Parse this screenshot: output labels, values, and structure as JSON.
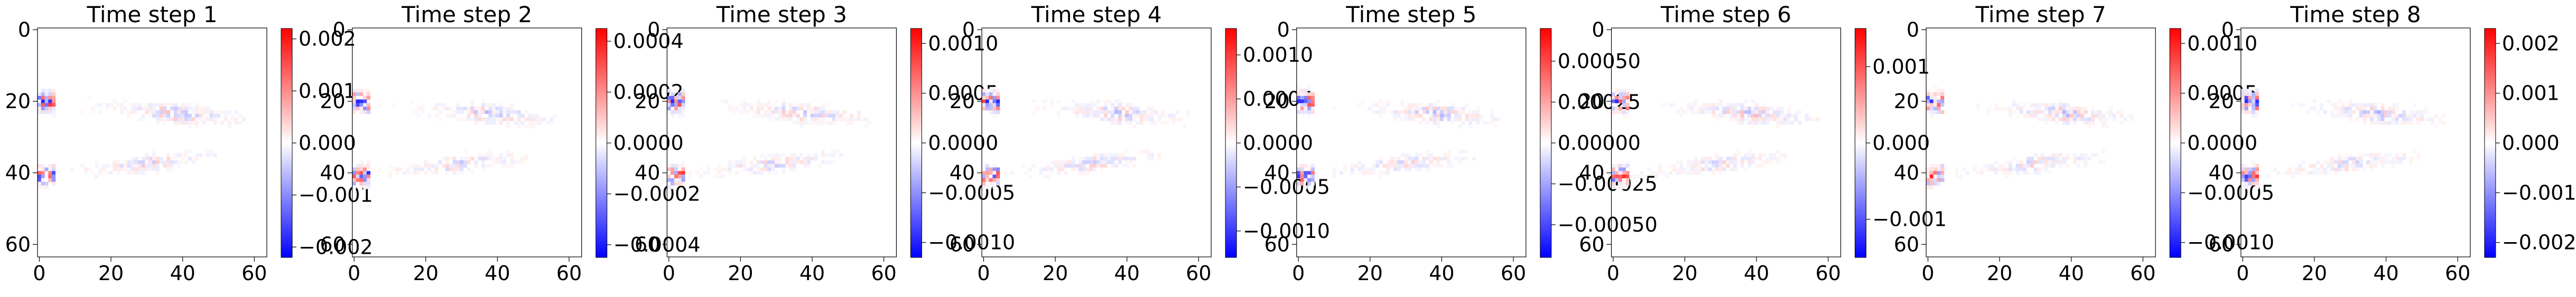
{
  "chart_data": [
    {
      "type": "heatmap",
      "title": "Time step 1",
      "colormap": "bwr",
      "x_ticks": [
        "0",
        "20",
        "40",
        "60"
      ],
      "y_ticks": [
        "0",
        "20",
        "40",
        "60"
      ],
      "xlim": [
        0,
        64
      ],
      "ylim": [
        64,
        0
      ],
      "colorbar": {
        "range": [
          -0.0022,
          0.0022
        ],
        "ticks": [
          {
            "v": 0.002,
            "label": "0.002"
          },
          {
            "v": 0.001,
            "label": "0.001"
          },
          {
            "v": 0,
            "label": "0.000"
          },
          {
            "v": -0.001,
            "label": "−0.001"
          },
          {
            "v": -0.002,
            "label": "−0.002"
          }
        ]
      }
    },
    {
      "type": "heatmap",
      "title": "Time step 2",
      "colormap": "bwr",
      "x_ticks": [
        "0",
        "20",
        "40",
        "60"
      ],
      "y_ticks": [
        "0",
        "20",
        "40",
        "60"
      ],
      "xlim": [
        0,
        64
      ],
      "ylim": [
        64,
        0
      ],
      "colorbar": {
        "range": [
          -0.00045,
          0.00045
        ],
        "ticks": [
          {
            "v": 0.0004,
            "label": "0.0004"
          },
          {
            "v": 0.0002,
            "label": "0.0002"
          },
          {
            "v": 0,
            "label": "0.0000"
          },
          {
            "v": -0.0002,
            "label": "−0.0002"
          },
          {
            "v": -0.0004,
            "label": "−0.0004"
          }
        ]
      }
    },
    {
      "type": "heatmap",
      "title": "Time step 3",
      "colormap": "bwr",
      "x_ticks": [
        "0",
        "20",
        "40",
        "60"
      ],
      "y_ticks": [
        "0",
        "20",
        "40",
        "60"
      ],
      "xlim": [
        0,
        64
      ],
      "ylim": [
        64,
        0
      ],
      "colorbar": {
        "range": [
          -0.00115,
          0.00115
        ],
        "ticks": [
          {
            "v": 0.001,
            "label": "0.0010"
          },
          {
            "v": 0.0005,
            "label": "0.0005"
          },
          {
            "v": 0,
            "label": "0.0000"
          },
          {
            "v": -0.0005,
            "label": "−0.0005"
          },
          {
            "v": -0.001,
            "label": "−0.0010"
          }
        ]
      }
    },
    {
      "type": "heatmap",
      "title": "Time step 4",
      "colormap": "bwr",
      "x_ticks": [
        "0",
        "20",
        "40",
        "60"
      ],
      "y_ticks": [
        "0",
        "20",
        "40",
        "60"
      ],
      "xlim": [
        0,
        64
      ],
      "ylim": [
        64,
        0
      ],
      "colorbar": {
        "range": [
          -0.0013,
          0.0013
        ],
        "ticks": [
          {
            "v": 0.001,
            "label": "0.0010"
          },
          {
            "v": 0.0005,
            "label": "0.0005"
          },
          {
            "v": 0,
            "label": "0.0000"
          },
          {
            "v": -0.0005,
            "label": "−0.0005"
          },
          {
            "v": -0.001,
            "label": "−0.0010"
          }
        ]
      }
    },
    {
      "type": "heatmap",
      "title": "Time step 5",
      "colormap": "bwr",
      "x_ticks": [
        "0",
        "20",
        "40",
        "60"
      ],
      "y_ticks": [
        "0",
        "20",
        "40",
        "60"
      ],
      "xlim": [
        0,
        64
      ],
      "ylim": [
        64,
        0
      ],
      "colorbar": {
        "range": [
          -0.0007,
          0.0007
        ],
        "ticks": [
          {
            "v": 0.0005,
            "label": "0.00050"
          },
          {
            "v": 0.00025,
            "label": "0.00025"
          },
          {
            "v": 0,
            "label": "0.00000"
          },
          {
            "v": -0.00025,
            "label": "−0.00025"
          },
          {
            "v": -0.0005,
            "label": "−0.00050"
          }
        ]
      }
    },
    {
      "type": "heatmap",
      "title": "Time step 6",
      "colormap": "bwr",
      "x_ticks": [
        "0",
        "20",
        "40",
        "60"
      ],
      "y_ticks": [
        "0",
        "20",
        "40",
        "60"
      ],
      "xlim": [
        0,
        64
      ],
      "ylim": [
        64,
        0
      ],
      "colorbar": {
        "range": [
          -0.0015,
          0.0015
        ],
        "ticks": [
          {
            "v": 0.001,
            "label": "0.001"
          },
          {
            "v": 0,
            "label": "0.000"
          },
          {
            "v": -0.001,
            "label": "−0.001"
          }
        ]
      }
    },
    {
      "type": "heatmap",
      "title": "Time step 7",
      "colormap": "bwr",
      "x_ticks": [
        "0",
        "20",
        "40",
        "60"
      ],
      "y_ticks": [
        "0",
        "20",
        "40",
        "60"
      ],
      "xlim": [
        0,
        64
      ],
      "ylim": [
        64,
        0
      ],
      "colorbar": {
        "range": [
          -0.00115,
          0.00115
        ],
        "ticks": [
          {
            "v": 0.001,
            "label": "0.0010"
          },
          {
            "v": 0.0005,
            "label": "0.0005"
          },
          {
            "v": 0,
            "label": "0.0000"
          },
          {
            "v": -0.0005,
            "label": "−0.0005"
          },
          {
            "v": -0.001,
            "label": "−0.0010"
          }
        ]
      }
    },
    {
      "type": "heatmap",
      "title": "Time step 8",
      "colormap": "bwr",
      "x_ticks": [
        "0",
        "20",
        "40",
        "60"
      ],
      "y_ticks": [
        "0",
        "20",
        "40",
        "60"
      ],
      "xlim": [
        0,
        64
      ],
      "ylim": [
        64,
        0
      ],
      "colorbar": {
        "range": [
          -0.0023,
          0.0023
        ],
        "ticks": [
          {
            "v": 0.002,
            "label": "0.002"
          },
          {
            "v": 0.001,
            "label": "0.001"
          },
          {
            "v": 0,
            "label": "0.000"
          },
          {
            "v": -0.001,
            "label": "−0.001"
          },
          {
            "v": -0.002,
            "label": "−0.002"
          }
        ]
      }
    }
  ]
}
